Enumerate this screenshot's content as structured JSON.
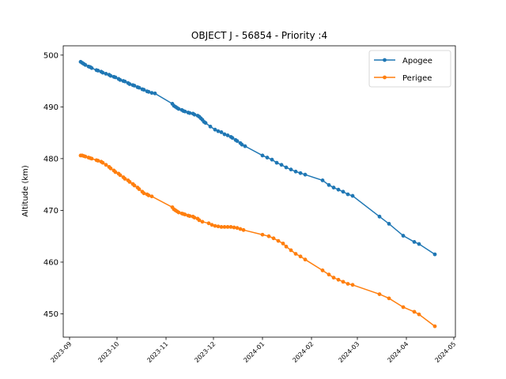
{
  "chart_data": {
    "type": "line",
    "title": "OBJECT J - 56854 - Priority :4",
    "xlabel": "",
    "ylabel": "Altitude (km)",
    "x_ticks": [
      "2023-09",
      "2023-10",
      "2023-11",
      "2023-12",
      "2024-01",
      "2024-02",
      "2024-03",
      "2024-04",
      "2024-05"
    ],
    "y_ticks": [
      450,
      460,
      470,
      480,
      490,
      500
    ],
    "xlim": [
      "2023-08-28",
      "2024-05-02"
    ],
    "ylim": [
      445.5,
      501.8
    ],
    "grid": false,
    "legend_position": "top-right",
    "series": [
      {
        "name": "Apogee",
        "color": "#1f77b4",
        "marker": "circle",
        "points": [
          [
            "2023-09-08",
            498.7
          ],
          [
            "2023-09-09",
            498.5
          ],
          [
            "2023-09-10",
            498.3
          ],
          [
            "2023-09-11",
            498.1
          ],
          [
            "2023-09-13",
            497.8
          ],
          [
            "2023-09-14",
            497.7
          ],
          [
            "2023-09-15",
            497.5
          ],
          [
            "2023-09-18",
            497.1
          ],
          [
            "2023-09-19",
            497.0
          ],
          [
            "2023-09-21",
            496.8
          ],
          [
            "2023-09-22",
            496.6
          ],
          [
            "2023-09-24",
            496.4
          ],
          [
            "2023-09-26",
            496.2
          ],
          [
            "2023-09-27",
            496.0
          ],
          [
            "2023-09-29",
            495.8
          ],
          [
            "2023-09-30",
            495.7
          ],
          [
            "2023-10-02",
            495.4
          ],
          [
            "2023-10-03",
            495.2
          ],
          [
            "2023-10-05",
            495.0
          ],
          [
            "2023-10-06",
            494.9
          ],
          [
            "2023-10-08",
            494.6
          ],
          [
            "2023-10-09",
            494.4
          ],
          [
            "2023-10-11",
            494.2
          ],
          [
            "2023-10-12",
            494.1
          ],
          [
            "2023-10-14",
            493.8
          ],
          [
            "2023-10-15",
            493.7
          ],
          [
            "2023-10-17",
            493.4
          ],
          [
            "2023-10-18",
            493.3
          ],
          [
            "2023-10-20",
            493.0
          ],
          [
            "2023-10-21",
            492.9
          ],
          [
            "2023-10-23",
            492.7
          ],
          [
            "2023-10-25",
            492.6
          ],
          [
            "2023-11-05",
            490.6
          ],
          [
            "2023-11-06",
            490.2
          ],
          [
            "2023-11-07",
            490.0
          ],
          [
            "2023-11-08",
            489.8
          ],
          [
            "2023-11-09",
            489.6
          ],
          [
            "2023-11-11",
            489.4
          ],
          [
            "2023-11-12",
            489.2
          ],
          [
            "2023-11-13",
            489.1
          ],
          [
            "2023-11-15",
            488.9
          ],
          [
            "2023-11-16",
            488.8
          ],
          [
            "2023-11-18",
            488.7
          ],
          [
            "2023-11-19",
            488.5
          ],
          [
            "2023-11-21",
            488.3
          ],
          [
            "2023-11-22",
            488.1
          ],
          [
            "2023-11-23",
            487.8
          ],
          [
            "2023-11-24",
            487.5
          ],
          [
            "2023-11-25",
            487.1
          ],
          [
            "2023-11-26",
            486.9
          ],
          [
            "2023-11-29",
            486.2
          ],
          [
            "2023-12-02",
            485.6
          ],
          [
            "2023-12-04",
            485.3
          ],
          [
            "2023-12-06",
            485.1
          ],
          [
            "2023-12-08",
            484.7
          ],
          [
            "2023-12-10",
            484.5
          ],
          [
            "2023-12-12",
            484.2
          ],
          [
            "2023-12-13",
            484.0
          ],
          [
            "2023-12-15",
            483.6
          ],
          [
            "2023-12-16",
            483.4
          ],
          [
            "2023-12-18",
            483.0
          ],
          [
            "2023-12-19",
            482.7
          ],
          [
            "2023-12-21",
            482.4
          ],
          [
            "2024-01-01",
            480.6
          ],
          [
            "2024-01-04",
            480.2
          ],
          [
            "2024-01-07",
            479.8
          ],
          [
            "2024-01-10",
            479.2
          ],
          [
            "2024-01-13",
            478.8
          ],
          [
            "2024-01-16",
            478.3
          ],
          [
            "2024-01-19",
            477.9
          ],
          [
            "2024-01-22",
            477.5
          ],
          [
            "2024-01-25",
            477.2
          ],
          [
            "2024-01-28",
            476.9
          ],
          [
            "2024-02-08",
            475.8
          ],
          [
            "2024-02-12",
            474.9
          ],
          [
            "2024-02-15",
            474.4
          ],
          [
            "2024-02-18",
            474.0
          ],
          [
            "2024-02-21",
            473.6
          ],
          [
            "2024-02-24",
            473.1
          ],
          [
            "2024-02-27",
            472.8
          ],
          [
            "2024-03-15",
            468.8
          ],
          [
            "2024-03-21",
            467.4
          ],
          [
            "2024-03-30",
            465.1
          ],
          [
            "2024-04-06",
            463.9
          ],
          [
            "2024-04-09",
            463.5
          ],
          [
            "2024-04-19",
            461.5
          ]
        ]
      },
      {
        "name": "Perigee",
        "color": "#ff7f0e",
        "marker": "circle",
        "points": [
          [
            "2023-09-08",
            480.6
          ],
          [
            "2023-09-09",
            480.6
          ],
          [
            "2023-09-10",
            480.5
          ],
          [
            "2023-09-11",
            480.4
          ],
          [
            "2023-09-13",
            480.2
          ],
          [
            "2023-09-14",
            480.1
          ],
          [
            "2023-09-15",
            480.0
          ],
          [
            "2023-09-18",
            479.7
          ],
          [
            "2023-09-19",
            479.6
          ],
          [
            "2023-09-21",
            479.4
          ],
          [
            "2023-09-22",
            479.2
          ],
          [
            "2023-09-24",
            478.8
          ],
          [
            "2023-09-26",
            478.4
          ],
          [
            "2023-09-27",
            478.1
          ],
          [
            "2023-09-29",
            477.7
          ],
          [
            "2023-09-30",
            477.4
          ],
          [
            "2023-10-02",
            477.1
          ],
          [
            "2023-10-03",
            476.8
          ],
          [
            "2023-10-05",
            476.4
          ],
          [
            "2023-10-06",
            476.1
          ],
          [
            "2023-10-08",
            475.8
          ],
          [
            "2023-10-09",
            475.5
          ],
          [
            "2023-10-11",
            475.1
          ],
          [
            "2023-10-12",
            474.8
          ],
          [
            "2023-10-14",
            474.4
          ],
          [
            "2023-10-15",
            474.1
          ],
          [
            "2023-10-17",
            473.6
          ],
          [
            "2023-10-18",
            473.3
          ],
          [
            "2023-10-20",
            473.1
          ],
          [
            "2023-10-21",
            472.9
          ],
          [
            "2023-10-23",
            472.7
          ],
          [
            "2023-11-05",
            470.6
          ],
          [
            "2023-11-06",
            470.2
          ],
          [
            "2023-11-07",
            470.0
          ],
          [
            "2023-11-08",
            469.8
          ],
          [
            "2023-11-09",
            469.6
          ],
          [
            "2023-11-11",
            469.4
          ],
          [
            "2023-11-12",
            469.3
          ],
          [
            "2023-11-13",
            469.2
          ],
          [
            "2023-11-15",
            469.0
          ],
          [
            "2023-11-16",
            468.9
          ],
          [
            "2023-11-18",
            468.8
          ],
          [
            "2023-11-19",
            468.6
          ],
          [
            "2023-11-21",
            468.4
          ],
          [
            "2023-11-22",
            468.1
          ],
          [
            "2023-11-24",
            467.8
          ],
          [
            "2023-11-28",
            467.5
          ],
          [
            "2023-11-30",
            467.2
          ],
          [
            "2023-12-02",
            467.0
          ],
          [
            "2023-12-04",
            466.9
          ],
          [
            "2023-12-06",
            466.8
          ],
          [
            "2023-12-08",
            466.8
          ],
          [
            "2023-12-10",
            466.8
          ],
          [
            "2023-12-12",
            466.8
          ],
          [
            "2023-12-14",
            466.7
          ],
          [
            "2023-12-16",
            466.6
          ],
          [
            "2023-12-18",
            466.4
          ],
          [
            "2023-12-20",
            466.2
          ],
          [
            "2024-01-01",
            465.3
          ],
          [
            "2024-01-05",
            465.0
          ],
          [
            "2024-01-08",
            464.6
          ],
          [
            "2024-01-11",
            464.1
          ],
          [
            "2024-01-14",
            463.6
          ],
          [
            "2024-01-16",
            463.0
          ],
          [
            "2024-01-19",
            462.3
          ],
          [
            "2024-01-22",
            461.6
          ],
          [
            "2024-01-25",
            461.1
          ],
          [
            "2024-01-28",
            460.5
          ],
          [
            "2024-02-08",
            458.4
          ],
          [
            "2024-02-12",
            457.6
          ],
          [
            "2024-02-15",
            457.0
          ],
          [
            "2024-02-18",
            456.6
          ],
          [
            "2024-02-21",
            456.2
          ],
          [
            "2024-02-24",
            455.8
          ],
          [
            "2024-02-27",
            455.6
          ],
          [
            "2024-03-15",
            453.8
          ],
          [
            "2024-03-21",
            453.0
          ],
          [
            "2024-03-30",
            451.3
          ],
          [
            "2024-04-06",
            450.4
          ],
          [
            "2024-04-09",
            449.9
          ],
          [
            "2024-04-19",
            447.6
          ]
        ]
      }
    ]
  }
}
